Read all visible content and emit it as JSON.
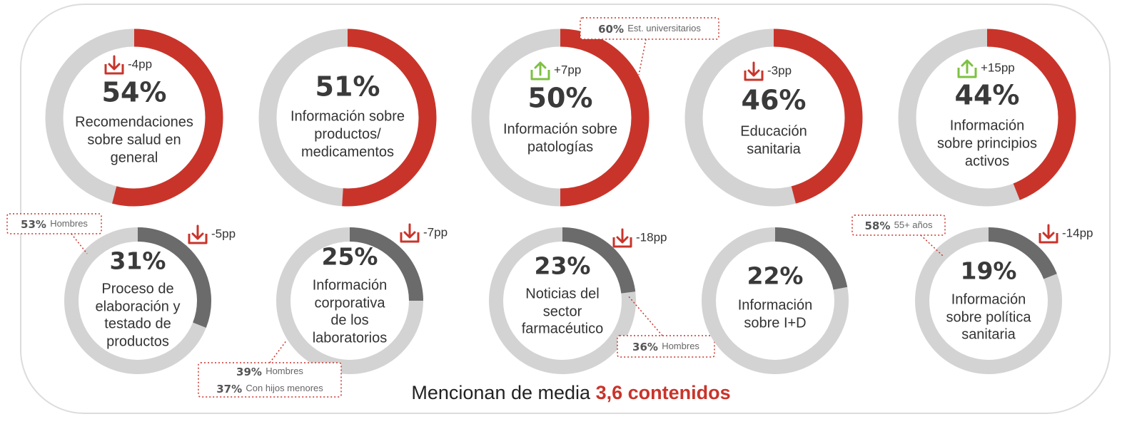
{
  "chart_data": {
    "type": "donut",
    "colors": {
      "top_fill": "#c9342a",
      "bottom_fill": "#6b6b6b",
      "track": "#d3d3d3",
      "arrow_down": "#c9342a",
      "arrow_up": "#7dc142",
      "callout_border": "#c9342a"
    },
    "items": [
      {
        "value": 54,
        "value_label": "54%",
        "label_lines": [
          "Recomendaciones",
          "sobre salud en",
          "general"
        ],
        "delta": "-4pp",
        "direction": "down"
      },
      {
        "value": 51,
        "value_label": "51%",
        "label_lines": [
          "Información sobre",
          "productos/",
          "medicamentos"
        ],
        "delta": "",
        "direction": ""
      },
      {
        "value": 50,
        "value_label": "50%",
        "label_lines": [
          "Información sobre",
          "patologías"
        ],
        "delta": "+7pp",
        "direction": "up",
        "callouts": [
          {
            "lines": [
              {
                "bold": "60%",
                "text": "Est. universitarios"
              }
            ]
          }
        ]
      },
      {
        "value": 46,
        "value_label": "46%",
        "label_lines": [
          "Educación",
          "sanitaria"
        ],
        "delta": "-3pp",
        "direction": "down"
      },
      {
        "value": 44,
        "value_label": "44%",
        "label_lines": [
          "Información",
          "sobre principios",
          "activos"
        ],
        "delta": "+15pp",
        "direction": "up"
      },
      {
        "value": 31,
        "value_label": "31%",
        "label_lines": [
          "Proceso de",
          "elaboración y",
          "testado de",
          "productos"
        ],
        "delta": "-5pp",
        "direction": "down",
        "callouts": [
          {
            "lines": [
              {
                "bold": "53%",
                "text": "Hombres"
              }
            ]
          }
        ]
      },
      {
        "value": 25,
        "value_label": "25%",
        "label_lines": [
          "Información",
          "corporativa",
          "de los",
          "laboratorios"
        ],
        "delta": "-7pp",
        "direction": "down",
        "callouts": [
          {
            "lines": [
              {
                "bold": "39%",
                "text": "Hombres"
              },
              {
                "bold": "37%",
                "text": "Con hijos menores"
              }
            ]
          }
        ]
      },
      {
        "value": 23,
        "value_label": "23%",
        "label_lines": [
          "Noticias del",
          "sector",
          "farmacéutico"
        ],
        "delta": "-18pp",
        "direction": "down",
        "callouts": [
          {
            "lines": [
              {
                "bold": "36%",
                "text": "Hombres"
              }
            ]
          }
        ]
      },
      {
        "value": 22,
        "value_label": "22%",
        "label_lines": [
          "Información",
          "sobre I+D"
        ],
        "delta": "",
        "direction": ""
      },
      {
        "value": 19,
        "value_label": "19%",
        "label_lines": [
          "Información",
          "sobre política",
          "sanitaria"
        ],
        "delta": "-14pp",
        "direction": "down",
        "callouts": [
          {
            "lines": [
              {
                "bold": "58%",
                "text": "55+ años"
              }
            ]
          }
        ]
      }
    ],
    "summary": {
      "prefix": "Mencionan de media",
      "highlight": "3,6 contenidos"
    }
  }
}
